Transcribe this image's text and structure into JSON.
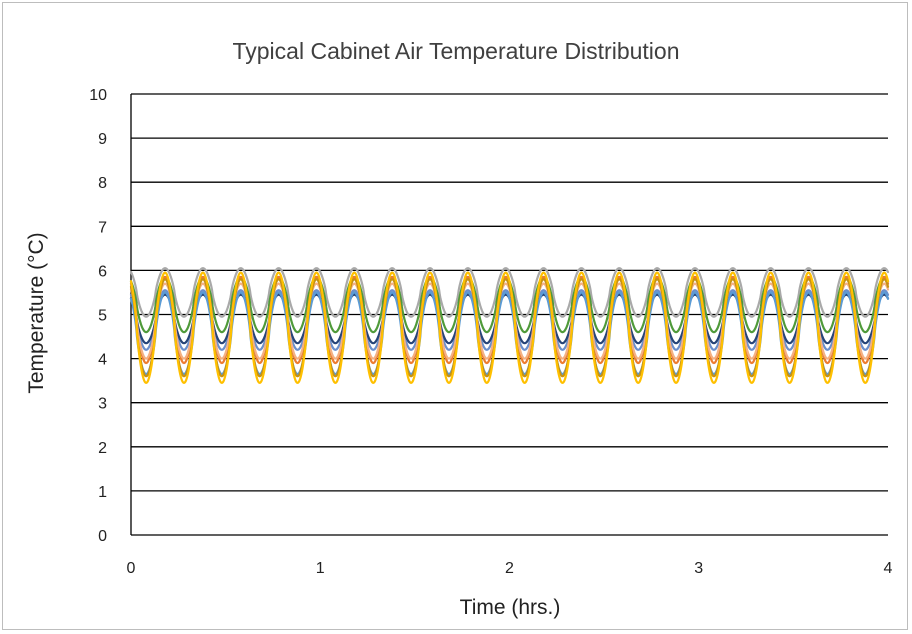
{
  "chart_data": {
    "type": "line",
    "title": "Typical Cabinet Air Temperature Distribution",
    "xlabel": "Time (hrs.)",
    "ylabel": "Temperature (°C)",
    "xlim": [
      0,
      4
    ],
    "ylim": [
      0,
      10
    ],
    "xticks": [
      "0",
      "1",
      "2",
      "3",
      "4"
    ],
    "yticks": [
      "0",
      "1",
      "2",
      "3",
      "4",
      "5",
      "6",
      "7",
      "8",
      "9",
      "10"
    ],
    "grid": "horizontal",
    "legend": "none",
    "cycle_period_hrs": 0.2,
    "cycles_peak_times_hrs": [
      0.18,
      0.37,
      0.57,
      0.77,
      0.97,
      1.17,
      1.37,
      1.57,
      1.77,
      1.97,
      2.17,
      2.37,
      2.57,
      2.77,
      2.97,
      3.17,
      3.37,
      3.57,
      3.77,
      3.97
    ],
    "series": [
      {
        "color": "#a9a9a9",
        "min": 4.95,
        "max": 6.05
      },
      {
        "color": "#4f9a3a",
        "min": 4.6,
        "max": 5.85
      },
      {
        "color": "#6b8fcc",
        "min": 4.2,
        "max": 5.55
      },
      {
        "color": "#264478",
        "min": 4.35,
        "max": 5.45
      },
      {
        "color": "#ed7d31",
        "min": 3.9,
        "max": 5.85
      },
      {
        "color": "#f4b183",
        "min": 4.0,
        "max": 5.7
      },
      {
        "color": "#5b9bd5",
        "min": 3.65,
        "max": 5.5
      },
      {
        "color": "#c69214",
        "min": 3.6,
        "max": 5.8
      },
      {
        "color": "#ffc000",
        "min": 3.45,
        "max": 5.95
      }
    ]
  }
}
